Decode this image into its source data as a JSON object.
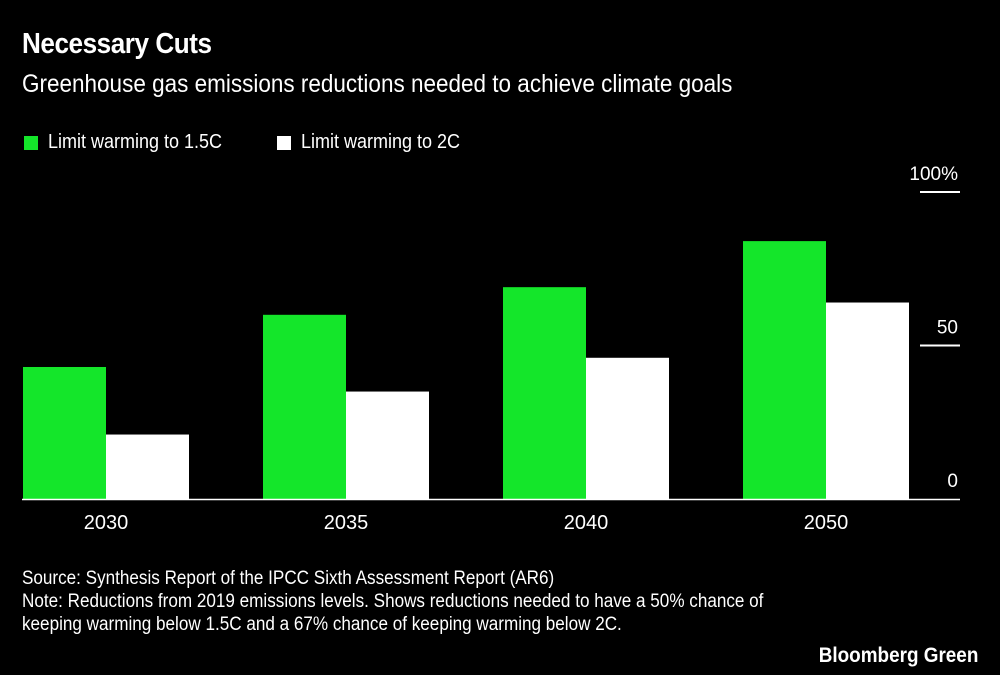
{
  "header": {
    "title": "Necessary Cuts",
    "subtitle": "Greenhouse gas emissions reductions needed to achieve climate goals"
  },
  "footer": {
    "source": "Source: Synthesis Report of the IPCC Sixth Assessment Report (AR6)",
    "note": "Note: Reductions from 2019 emissions levels. Shows reductions needed to have a 50% chance of keeping warming below 1.5C and a 67% chance of keeping warming below 2C.",
    "brand": "Bloomberg Green"
  },
  "colors": {
    "background": "#000000",
    "green": "#14e62a",
    "white": "#ffffff"
  },
  "chart_data": {
    "type": "bar",
    "title": "Necessary Cuts",
    "subtitle": "Greenhouse gas emissions reductions needed to achieve climate goals",
    "xlabel": "",
    "ylabel": "",
    "categories": [
      "2030",
      "2035",
      "2040",
      "2050"
    ],
    "series": [
      {
        "name": "Limit warming to 1.5C",
        "color": "#14e62a",
        "values": [
          43,
          60,
          69,
          84
        ]
      },
      {
        "name": "Limit warming to 2C",
        "color": "#ffffff",
        "values": [
          21,
          35,
          46,
          64
        ]
      }
    ],
    "ylim": [
      0,
      100
    ],
    "yticks": [
      0,
      50,
      100
    ],
    "ytick_labels": [
      "0",
      "50",
      "100%"
    ],
    "yaxis_position": "right",
    "grid": false,
    "legend": "top-left"
  }
}
